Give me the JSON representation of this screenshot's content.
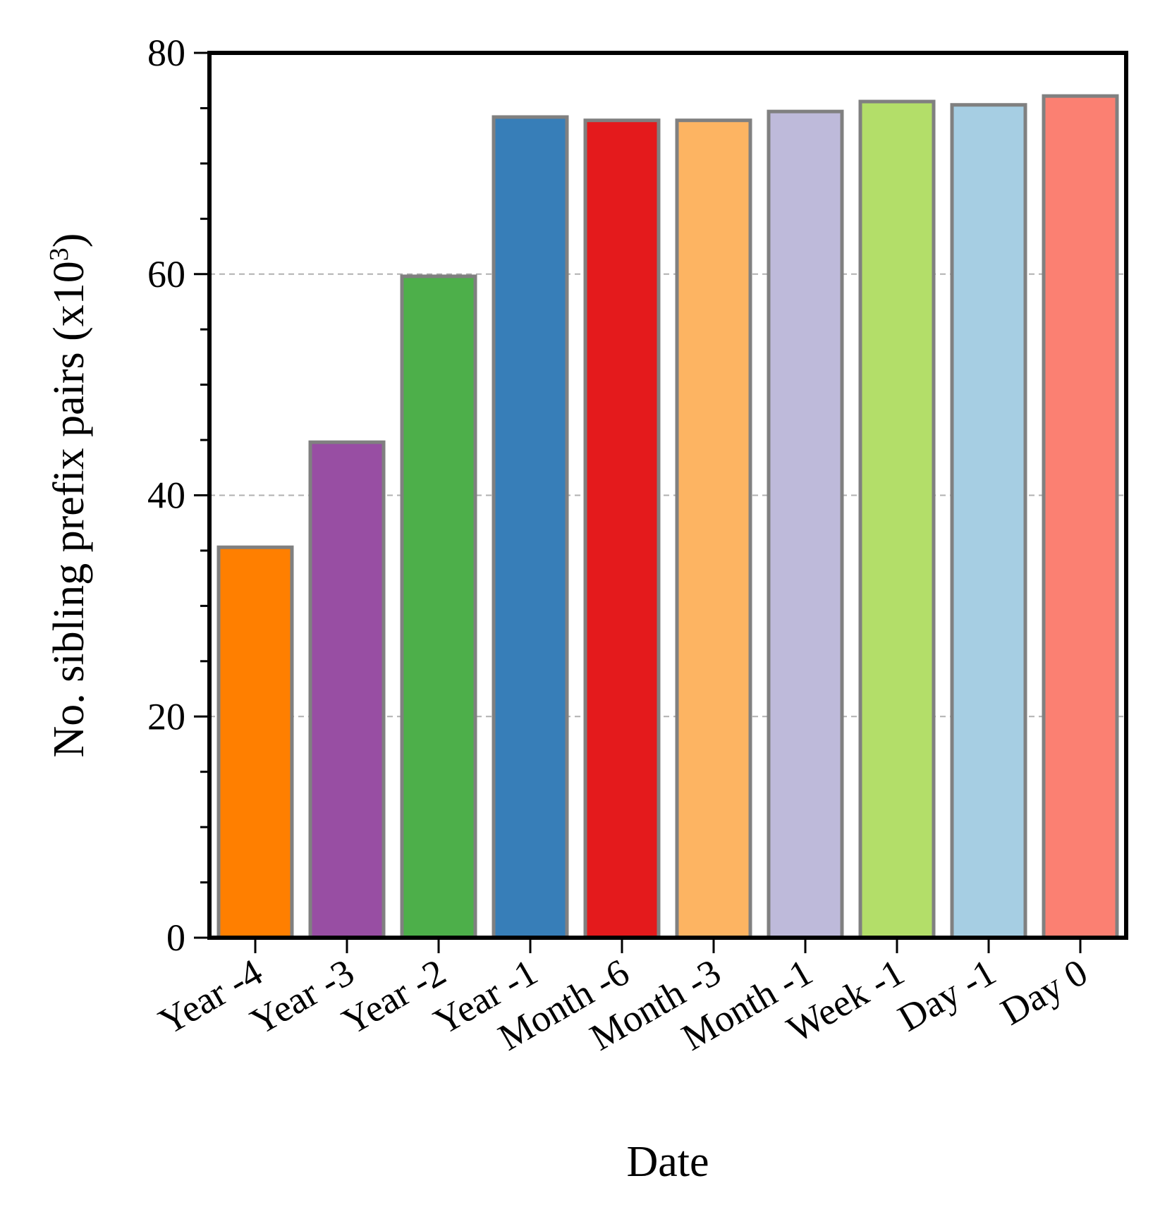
{
  "chart_data": {
    "type": "bar",
    "title": "",
    "xlabel": "Date",
    "ylabel": "No. sibling prefix pairs (x10",
    "ylabel_superscript": "3",
    "ylabel_suffix": ")",
    "ylim": [
      0,
      80
    ],
    "y_major_ticks": [
      0,
      20,
      40,
      60,
      80
    ],
    "y_minor_step": 5,
    "grid": "y-dashed-major",
    "categories": [
      "Year -4",
      "Year -3",
      "Year -2",
      "Year -1",
      "Month -6",
      "Month -3",
      "Month -1",
      "Week -1",
      "Day -1",
      "Day 0"
    ],
    "values": [
      35.3,
      44.8,
      59.8,
      74.2,
      73.9,
      73.9,
      74.7,
      75.6,
      75.3,
      76.1
    ],
    "colors": [
      "#ff7f00",
      "#984ea3",
      "#4daf4a",
      "#377eb8",
      "#e41a1c",
      "#fdb462",
      "#bebada",
      "#b3de69",
      "#a6cee3",
      "#fb8072"
    ],
    "bar_edge_color": "#808080",
    "grid_color": "#b0b0b0"
  }
}
